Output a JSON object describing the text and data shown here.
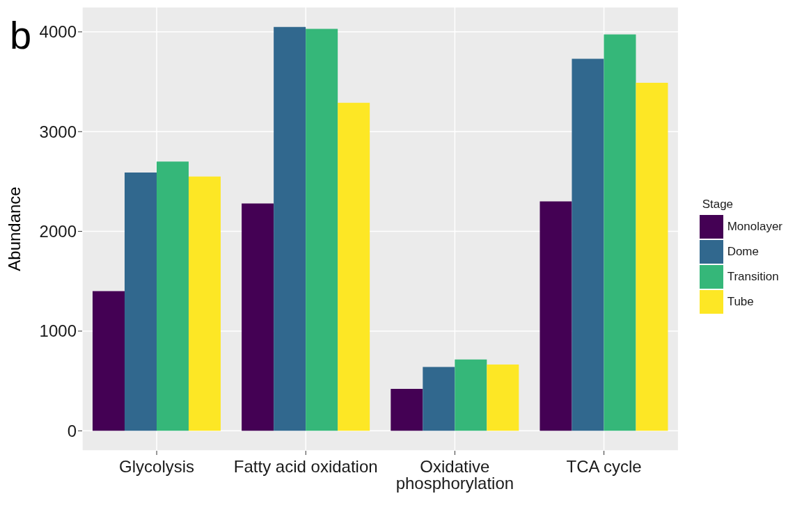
{
  "chart_data": {
    "type": "bar",
    "title": "b",
    "ylabel": "Abundance",
    "legend_title": "Stage",
    "categories": [
      "Glycolysis",
      "Fatty acid oxidation",
      "Oxidative phosphorylation",
      "TCA cycle"
    ],
    "series": [
      {
        "name": "Monolayer",
        "color": "#440154",
        "values": [
          1400,
          2280,
          420,
          2300
        ]
      },
      {
        "name": "Dome",
        "color": "#31688e",
        "values": [
          2590,
          4050,
          640,
          3730
        ]
      },
      {
        "name": "Transition",
        "color": "#35b779",
        "values": [
          2700,
          4030,
          715,
          3975
        ]
      },
      {
        "name": "Tube",
        "color": "#fde725",
        "values": [
          2550,
          3290,
          665,
          3490
        ]
      }
    ],
    "ylim": [
      -200,
      4250
    ],
    "yticks": [
      0,
      1000,
      2000,
      3000,
      4000
    ],
    "grid": true,
    "legend": "right"
  }
}
